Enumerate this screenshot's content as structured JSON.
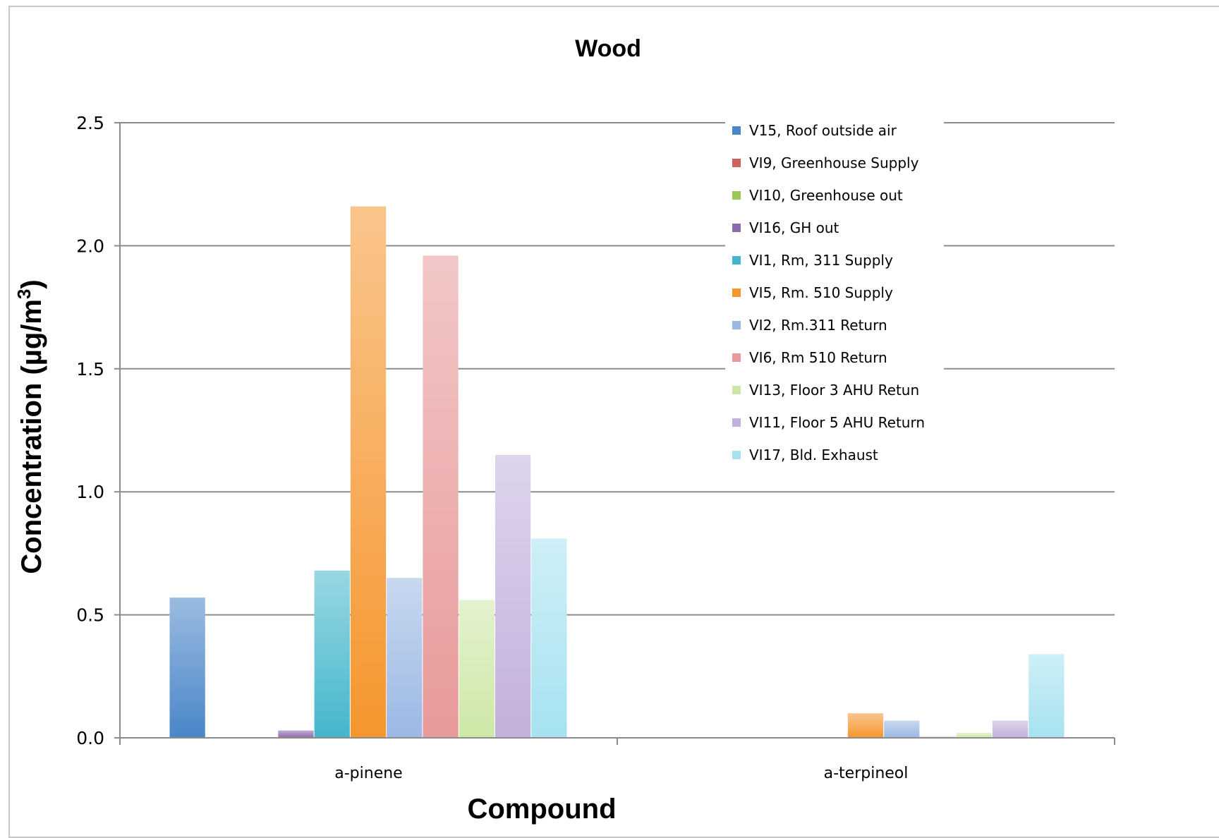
{
  "chart_data": {
    "type": "bar",
    "title": "Wood",
    "xlabel": "Compound",
    "ylabel": "Concentration (µg/m",
    "ylabel_sup": "3",
    "ylabel_close": ")",
    "ylim": [
      0,
      2.5
    ],
    "yticks": [
      "0.0",
      "0.5",
      "1.0",
      "1.5",
      "2.0",
      "2.5"
    ],
    "grid": true,
    "legend_position": "top-right",
    "categories": [
      "a-pinene",
      "a-terpineol"
    ],
    "series": [
      {
        "name": "V15, Roof outside air",
        "color": "#4a86c8",
        "values": [
          0.57,
          0
        ]
      },
      {
        "name": "VI9, Greenhouse Supply",
        "color": "#d0605c",
        "values": [
          0,
          0
        ]
      },
      {
        "name": "VI10, Greenhouse out",
        "color": "#9cc75a",
        "values": [
          0,
          0
        ]
      },
      {
        "name": "VI16, GH out",
        "color": "#8e6aae",
        "values": [
          0.03,
          0
        ]
      },
      {
        "name": "VI1, Rm, 311 Supply",
        "color": "#44b6cc",
        "values": [
          0.68,
          0
        ]
      },
      {
        "name": "VI5, Rm. 510 Supply",
        "color": "#f5962e",
        "values": [
          2.16,
          0.1
        ]
      },
      {
        "name": "VI2, Rm.311 Return",
        "color": "#9bb8e4",
        "values": [
          0.65,
          0.07
        ]
      },
      {
        "name": "VI6, Rm 510 Return",
        "color": "#e8999a",
        "values": [
          1.96,
          0.005
        ]
      },
      {
        "name": "VI13, Floor 3 AHU Retun",
        "color": "#cde8a6",
        "values": [
          0.56,
          0.02
        ]
      },
      {
        "name": "VI11, Floor 5 AHU Return",
        "color": "#c3b0dc",
        "values": [
          1.15,
          0.07
        ]
      },
      {
        "name": "VI17, Bld. Exhaust",
        "color": "#a6e2f0",
        "values": [
          0.81,
          0.34
        ]
      }
    ]
  }
}
